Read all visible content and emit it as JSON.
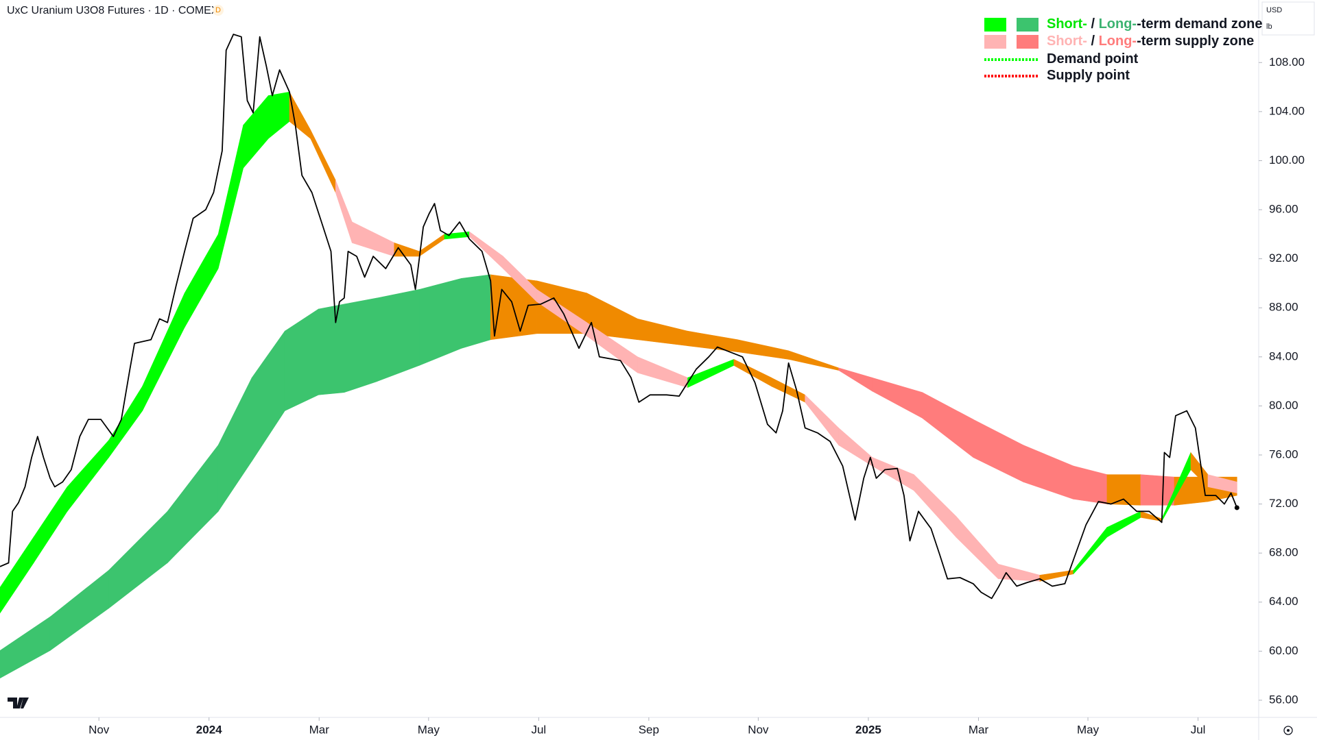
{
  "chart_data": {
    "type": "line",
    "title": "UxC Uranium U3O8 Futures · 1D · COMEX",
    "badge": "D",
    "currency": "USD",
    "unit": "lb",
    "color": "#000000",
    "xlim": [
      2023.683,
      2025.592
    ],
    "xticks": [
      {
        "value": 2023.833,
        "label": "Nov"
      },
      2024,
      {
        "value": 2024.167,
        "label": "Mar"
      },
      {
        "value": 2024.333,
        "label": "May"
      },
      {
        "value": 2024.5,
        "label": "Jul"
      },
      {
        "value": 2024.667,
        "label": "Sep"
      },
      {
        "value": 2024.833,
        "label": "Nov"
      },
      2025,
      {
        "value": 2025.167,
        "label": "Mar"
      },
      {
        "value": 2025.333,
        "label": "May"
      },
      {
        "value": 2025.5,
        "label": "Jul"
      }
    ],
    "ylim": [
      54.6,
      113.1
    ],
    "yticks": [
      {
        "value": 56,
        "label": "56.00"
      },
      {
        "value": 60,
        "label": "60.00"
      },
      {
        "value": 64,
        "label": "64.00"
      },
      {
        "value": 68,
        "label": "68.00"
      },
      {
        "value": 72,
        "label": "72.00"
      },
      {
        "value": 76,
        "label": "76.00"
      },
      {
        "value": 80,
        "label": "80.00"
      },
      {
        "value": 84,
        "label": "84.00"
      },
      {
        "value": 88,
        "label": "88.00"
      },
      {
        "value": 92,
        "label": "92.00"
      },
      {
        "value": 96,
        "label": "96.00"
      },
      {
        "value": 100,
        "label": "100.00"
      },
      {
        "value": 104,
        "label": "104.00"
      },
      {
        "value": 108,
        "label": "108.00"
      }
    ],
    "x": [
      2023.683,
      2023.696,
      2023.702,
      2023.711,
      2023.721,
      2023.731,
      2023.74,
      2023.749,
      2023.759,
      2023.766,
      2023.778,
      2023.791,
      2023.804,
      2023.817,
      2023.836,
      2023.855,
      2023.867,
      2023.88,
      2023.887,
      2023.912,
      2023.925,
      2023.937,
      2023.95,
      2023.963,
      2023.976,
      2023.995,
      2024.007,
      2024.02,
      2024.026,
      2024.037,
      2024.049,
      2024.058,
      2024.067,
      2024.077,
      2024.087,
      2024.096,
      2024.107,
      2024.122,
      2024.131,
      2024.141,
      2024.156,
      2024.173,
      2024.185,
      2024.192,
      2024.198,
      2024.205,
      2024.211,
      2024.224,
      2024.236,
      2024.249,
      2024.268,
      2024.287,
      2024.306,
      2024.313,
      2024.325,
      2024.334,
      2024.342,
      2024.351,
      2024.364,
      2024.38,
      2024.395,
      2024.414,
      2024.427,
      2024.433,
      2024.444,
      2024.459,
      2024.472,
      2024.484,
      2024.503,
      2024.523,
      2024.538,
      2024.561,
      2024.58,
      2024.592,
      2024.624,
      2024.64,
      2024.652,
      2024.669,
      2024.694,
      2024.713,
      2024.726,
      2024.739,
      2024.758,
      2024.771,
      2024.79,
      2024.809,
      2024.828,
      2024.847,
      2024.86,
      2024.87,
      2024.879,
      2024.891,
      2024.904,
      2024.923,
      2024.942,
      2024.961,
      2024.98,
      2024.993,
      2025.003,
      2025.012,
      2025.025,
      2025.044,
      2025.054,
      2025.063,
      2025.076,
      2025.095,
      2025.108,
      2025.12,
      2025.139,
      2025.159,
      2025.171,
      2025.187,
      2025.197,
      2025.209,
      2025.225,
      2025.241,
      2025.26,
      2025.279,
      2025.298,
      2025.314,
      2025.33,
      2025.349,
      2025.368,
      2025.387,
      2025.407,
      2025.426,
      2025.445,
      2025.449,
      2025.457,
      2025.466,
      2025.483,
      2025.496,
      2025.511,
      2025.527,
      2025.54,
      2025.55,
      2025.559
    ],
    "values": [
      66.9,
      67.2,
      71.4,
      72.1,
      73.4,
      75.8,
      77.5,
      75.8,
      74.1,
      73.4,
      73.8,
      74.8,
      77.5,
      78.9,
      78.9,
      77.5,
      78.9,
      83.0,
      85.1,
      85.4,
      87.1,
      86.8,
      89.8,
      92.6,
      95.3,
      96.0,
      97.4,
      100.8,
      109.0,
      110.3,
      110.1,
      104.9,
      103.9,
      110.1,
      107.7,
      105.3,
      107.4,
      105.6,
      102.9,
      98.8,
      97.4,
      94.6,
      92.6,
      86.8,
      88.5,
      88.8,
      92.6,
      92.2,
      90.5,
      92.2,
      91.2,
      92.9,
      91.5,
      89.5,
      94.6,
      95.7,
      96.5,
      94.3,
      93.9,
      95.0,
      93.6,
      92.6,
      90.2,
      85.7,
      89.5,
      88.5,
      86.1,
      88.2,
      88.3,
      88.8,
      87.5,
      84.7,
      86.8,
      84.0,
      83.7,
      82.3,
      80.3,
      80.9,
      80.9,
      80.8,
      81.9,
      83.0,
      84.0,
      84.8,
      84.4,
      84.0,
      81.9,
      78.5,
      77.8,
      79.6,
      83.5,
      81.3,
      78.2,
      77.8,
      77.1,
      75.1,
      70.7,
      74.1,
      75.8,
      74.1,
      74.8,
      74.9,
      72.7,
      69.0,
      71.4,
      70.0,
      67.9,
      65.9,
      66.0,
      65.5,
      64.8,
      64.3,
      65.2,
      66.4,
      65.3,
      65.6,
      65.9,
      65.3,
      65.5,
      67.9,
      70.3,
      72.2,
      72.0,
      72.4,
      71.4,
      71.4,
      70.5,
      76.2,
      75.8,
      79.2,
      79.6,
      78.2,
      72.7,
      72.7,
      72.0,
      72.9,
      71.7
    ],
    "bands": [
      {
        "x": [
          2023.683,
          2023.759,
          2023.848,
          2023.937,
          2024.014,
          2024.065,
          2024.115,
          2024.166,
          2024.205,
          2024.255,
          2024.319,
          2024.383,
          2024.427,
          2024.497,
          2024.573,
          2024.65,
          2024.726,
          2024.802,
          2024.879,
          2024.955,
          2025.006,
          2025.082,
          2025.159,
          2025.235,
          2025.311,
          2025.362,
          2025.413,
          2025.464,
          2025.515,
          2025.559
        ],
        "upper": [
          60.05,
          62.8,
          66.6,
          71.4,
          76.8,
          82.3,
          86.1,
          87.9,
          88.3,
          88.8,
          89.5,
          90.4,
          90.7,
          90.2,
          89.2,
          87.1,
          86.1,
          85.4,
          84.5,
          83.1,
          82.3,
          81.1,
          78.9,
          76.8,
          75.1,
          74.4,
          74.4,
          74.2,
          74.2,
          74.2
        ],
        "lower": [
          57.8,
          60.05,
          63.5,
          67.2,
          71.4,
          75.5,
          79.6,
          80.9,
          81.1,
          82.0,
          83.3,
          84.7,
          85.4,
          85.9,
          85.9,
          85.4,
          84.9,
          84.4,
          83.8,
          82.9,
          81.2,
          79.0,
          75.8,
          73.8,
          72.4,
          72.0,
          71.9,
          71.9,
          72.2,
          72.7
        ],
        "colors": [
          "#3cc46e",
          "#3cc46e",
          "#3cc46e",
          "#3cc46e",
          "#3cc46e",
          "#3cc46e",
          "#3cc46e",
          "#3cc46e",
          "#3cc46e",
          "#3cc46e",
          "#3cc46e",
          "#3cc46e",
          "#f08a00",
          "#f08a00",
          "#f08a00",
          "#f08a00",
          "#f08a00",
          "#f08a00",
          "#f08a00",
          "#ff7c7c",
          "#ff7c7c",
          "#ff7c7c",
          "#ff7c7c",
          "#ff7c7c",
          "#ff7c7c",
          "#f08a00",
          "#ff7c7c",
          "#f08a00",
          "#f08a00"
        ]
      },
      {
        "x": [
          2023.683,
          2023.734,
          2023.785,
          2023.848,
          2023.899,
          2023.963,
          2024.014,
          2024.052,
          2024.09,
          2024.122,
          2024.154,
          2024.192,
          2024.217,
          2024.281,
          2024.319,
          2024.357,
          2024.395,
          2024.446,
          2024.497,
          2024.573,
          2024.65,
          2024.726,
          2024.796,
          2024.853,
          2024.904,
          2024.955,
          2025.006,
          2025.069,
          2025.133,
          2025.197,
          2025.26,
          2025.311,
          2025.362,
          2025.413,
          2025.445,
          2025.489,
          2025.515,
          2025.559
        ],
        "upper": [
          65.2,
          69.3,
          73.4,
          77.2,
          81.6,
          89.2,
          94.0,
          102.9,
          105.3,
          105.6,
          102.5,
          98.4,
          95.0,
          93.3,
          92.6,
          94.0,
          94.2,
          92.2,
          89.5,
          86.8,
          84.0,
          82.3,
          83.8,
          82.3,
          80.9,
          78.2,
          75.8,
          74.4,
          71.0,
          67.1,
          66.2,
          66.6,
          70.1,
          71.4,
          70.8,
          76.2,
          74.4,
          73.8
        ],
        "lower": [
          63.1,
          67.2,
          71.4,
          75.8,
          79.6,
          86.4,
          91.2,
          99.4,
          101.8,
          103.2,
          101.8,
          97.4,
          93.3,
          92.2,
          92.2,
          93.6,
          93.8,
          91.2,
          88.5,
          85.7,
          82.7,
          81.5,
          83.3,
          81.6,
          80.3,
          76.8,
          75.1,
          73.1,
          69.3,
          65.9,
          65.7,
          66.3,
          69.3,
          70.9,
          70.6,
          74.8,
          73.4,
          72.9
        ],
        "colors": [
          "#00ff00",
          "#00ff00",
          "#00ff00",
          "#00ff00",
          "#00ff00",
          "#00ff00",
          "#00ff00",
          "#00ff00",
          "#00ff00",
          "#f08a00",
          "#f08a00",
          "#ffb3b3",
          "#ffb3b3",
          "#f08a00",
          "#f08a00",
          "#00ff00",
          "#ffb3b3",
          "#ffb3b3",
          "#ffb3b3",
          "#ffb3b3",
          "#ffb3b3",
          "#00ff00",
          "#f08a00",
          "#f08a00",
          "#ffb3b3",
          "#ffb3b3",
          "#ffb3b3",
          "#ffb3b3",
          "#ffb3b3",
          "#ffb3b3",
          "#f08a00",
          "#00ff00",
          "#00ff00",
          "#f08a00",
          "#00ff00",
          "#f08a00",
          "#ffb3b3"
        ]
      }
    ],
    "legend": {
      "position": "top-right",
      "items": [
        {
          "swatches": [
            "#00ff00",
            "#3cc46e"
          ],
          "parts": [
            {
              "text": "Short-",
              "color": "#00e600"
            },
            {
              "text": " / ",
              "color": "#131722"
            },
            {
              "text": "Long-",
              "color": "#3cb371"
            },
            {
              "text": "-term demand zone",
              "color": "#131722"
            }
          ]
        },
        {
          "swatches": [
            "#ffb3b3",
            "#ff7c7c"
          ],
          "parts": [
            {
              "text": "Short-",
              "color": "#ffb3b3"
            },
            {
              "text": " / ",
              "color": "#131722"
            },
            {
              "text": "Long-",
              "color": "#ff7c7c"
            },
            {
              "text": "-term supply zone",
              "color": "#131722"
            }
          ]
        },
        {
          "line": "#00ff00",
          "parts": [
            {
              "text": "Demand point",
              "color": "#131722"
            }
          ]
        },
        {
          "line": "#ff0000",
          "parts": [
            {
              "text": "Supply point",
              "color": "#131722"
            }
          ]
        }
      ]
    }
  }
}
